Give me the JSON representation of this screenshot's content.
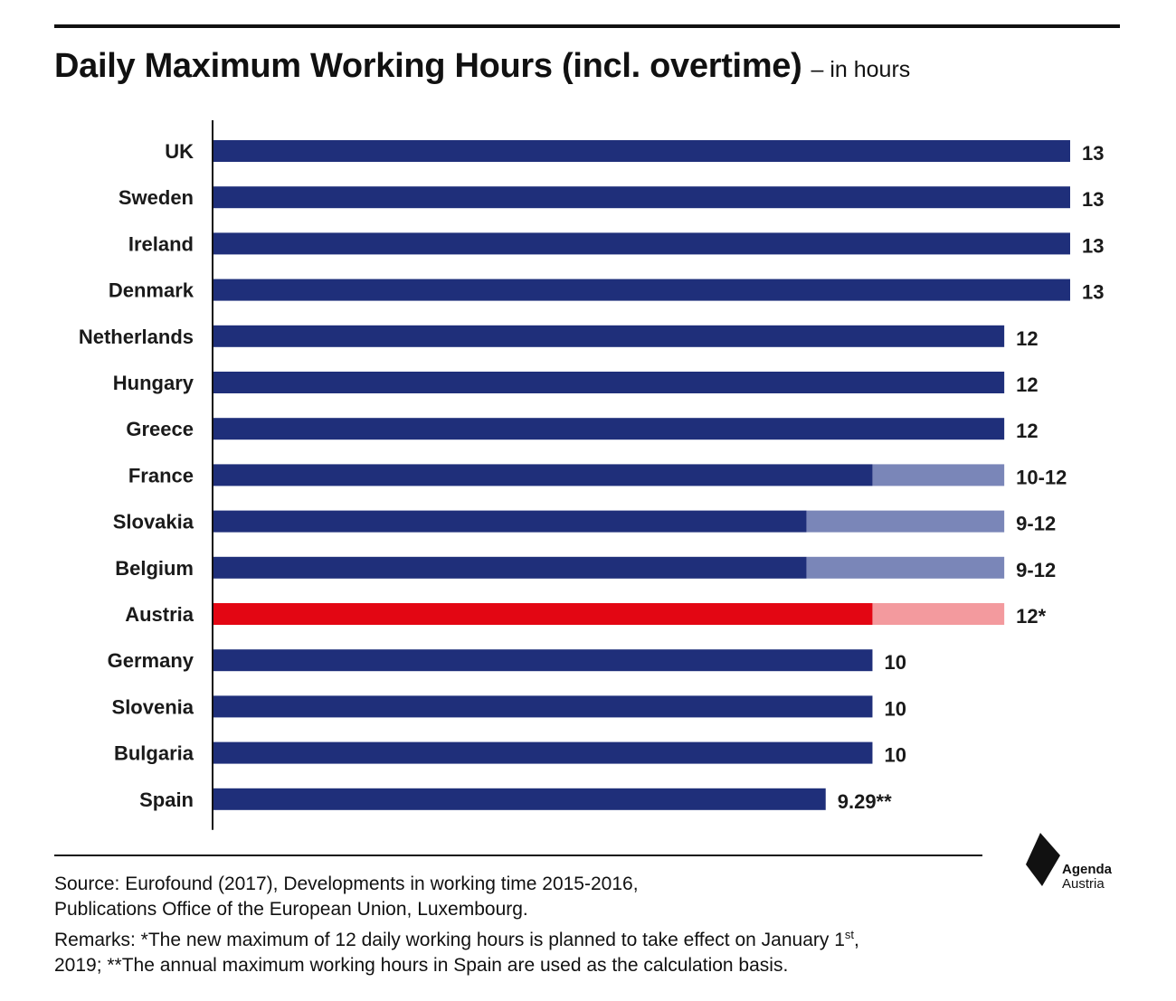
{
  "title": "Daily Maximum Working Hours (incl. overtime)",
  "subtitle": "– in hours",
  "colors": {
    "bar": "#1f2f7a",
    "bar_range": "#7a86b8",
    "highlight": "#e30613",
    "highlight_range": "#f39a9e"
  },
  "chart_data": {
    "type": "bar",
    "orientation": "horizontal",
    "stacked": true,
    "xlim": [
      0,
      13
    ],
    "grid": false,
    "categories": [
      "UK",
      "Sweden",
      "Ireland",
      "Denmark",
      "Netherlands",
      "Hungary",
      "Greece",
      "France",
      "Slovakia",
      "Belgium",
      "Austria",
      "Germany",
      "Slovenia",
      "Bulgaria",
      "Spain"
    ],
    "series": [
      {
        "values": [
          13,
          13,
          13,
          13,
          12,
          12,
          12,
          10,
          9,
          9,
          10,
          10,
          10,
          10,
          9.29
        ]
      },
      {
        "values": [
          0,
          0,
          0,
          0,
          0,
          0,
          0,
          2,
          3,
          3,
          2,
          0,
          0,
          0,
          0
        ]
      }
    ],
    "value_labels": [
      "13",
      "13",
      "13",
      "13",
      "12",
      "12",
      "12",
      "10-12",
      "9-12",
      "9-12",
      "12*",
      "10",
      "10",
      "10",
      "9.29**"
    ],
    "highlight_category": "Austria"
  },
  "footer": {
    "source_line1": "Source: Eurofound (2017), Developments in working time 2015-2016,",
    "source_line2": "Publications Office of the European Union, Luxembourg.",
    "remarks_line1": "Remarks: *The new maximum of 12 daily working hours is planned to take effect on January 1",
    "remarks_sup": "st",
    "remarks_line1_end": ",",
    "remarks_line2": "2019;  **The annual maximum working hours in Spain are used as the calculation basis."
  },
  "logo": {
    "line1": "Agenda",
    "line2": "Austria",
    "icon": "agenda-austria-logo-icon"
  }
}
